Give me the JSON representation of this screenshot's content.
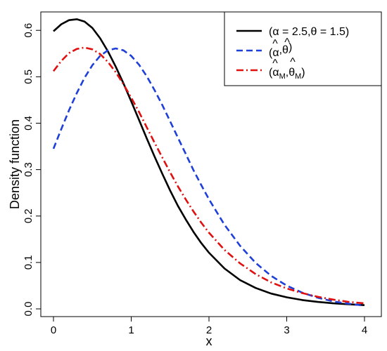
{
  "chart_data": {
    "type": "line",
    "title": "",
    "xlabel": "x",
    "ylabel": "Density function",
    "xlim": [
      0,
      4
    ],
    "ylim": [
      0,
      0.62
    ],
    "x_ticks": [
      "0",
      "1",
      "2",
      "3",
      "4"
    ],
    "y_ticks": [
      "0.0",
      "0.1",
      "0.2",
      "0.3",
      "0.4",
      "0.5",
      "0.6"
    ],
    "grid": false,
    "legend_position": "top-right",
    "series": [
      {
        "name": "(α = 2.5,θ = 1.5)",
        "color": "#000000",
        "dash": "solid",
        "x": [
          0,
          0.1,
          0.2,
          0.3,
          0.4,
          0.5,
          0.6,
          0.7,
          0.8,
          0.9,
          1.0,
          1.1,
          1.2,
          1.3,
          1.4,
          1.5,
          1.6,
          1.7,
          1.8,
          1.9,
          2.0,
          2.2,
          2.4,
          2.6,
          2.8,
          3.0,
          3.2,
          3.4,
          3.6,
          3.8,
          4.0
        ],
        "y": [
          0.598,
          0.613,
          0.622,
          0.624,
          0.619,
          0.605,
          0.583,
          0.555,
          0.522,
          0.486,
          0.447,
          0.407,
          0.367,
          0.328,
          0.291,
          0.255,
          0.222,
          0.193,
          0.166,
          0.142,
          0.121,
          0.087,
          0.062,
          0.045,
          0.033,
          0.025,
          0.019,
          0.015,
          0.012,
          0.01,
          0.008
        ]
      },
      {
        "name": "(α̂,θ̂)",
        "color": "#1f3fd9",
        "dash": "dashed",
        "x": [
          0,
          0.1,
          0.2,
          0.3,
          0.4,
          0.5,
          0.6,
          0.7,
          0.8,
          0.9,
          1.0,
          1.1,
          1.2,
          1.3,
          1.4,
          1.5,
          1.6,
          1.7,
          1.8,
          1.9,
          2.0,
          2.2,
          2.4,
          2.6,
          2.8,
          3.0,
          3.2,
          3.4,
          3.6,
          3.8,
          4.0
        ],
        "y": [
          0.345,
          0.387,
          0.428,
          0.465,
          0.498,
          0.525,
          0.545,
          0.557,
          0.561,
          0.557,
          0.545,
          0.526,
          0.501,
          0.471,
          0.439,
          0.404,
          0.369,
          0.334,
          0.299,
          0.267,
          0.236,
          0.181,
          0.136,
          0.099,
          0.071,
          0.05,
          0.035,
          0.024,
          0.016,
          0.011,
          0.007
        ]
      },
      {
        "name": "(α̂M,θ̂M)",
        "color": "#e01010",
        "dash": "dashdot",
        "x": [
          0,
          0.1,
          0.2,
          0.3,
          0.4,
          0.5,
          0.6,
          0.7,
          0.8,
          0.9,
          1.0,
          1.1,
          1.2,
          1.3,
          1.4,
          1.5,
          1.6,
          1.7,
          1.8,
          1.9,
          2.0,
          2.2,
          2.4,
          2.6,
          2.8,
          3.0,
          3.2,
          3.4,
          3.6,
          3.8,
          4.0
        ],
        "y": [
          0.512,
          0.534,
          0.551,
          0.56,
          0.563,
          0.559,
          0.549,
          0.532,
          0.51,
          0.484,
          0.455,
          0.424,
          0.391,
          0.358,
          0.326,
          0.294,
          0.264,
          0.236,
          0.21,
          0.186,
          0.164,
          0.127,
          0.098,
          0.075,
          0.057,
          0.044,
          0.034,
          0.026,
          0.02,
          0.015,
          0.012
        ]
      }
    ]
  },
  "legend": {
    "entries": [
      {
        "pre": "(α = 2.5,θ = 1.5)"
      },
      {
        "hat1": "α",
        "sub1": "",
        "hat2": "θ",
        "sub2": ""
      },
      {
        "hat1": "α",
        "sub1": "M",
        "hat2": "θ",
        "sub2": "M"
      }
    ]
  }
}
